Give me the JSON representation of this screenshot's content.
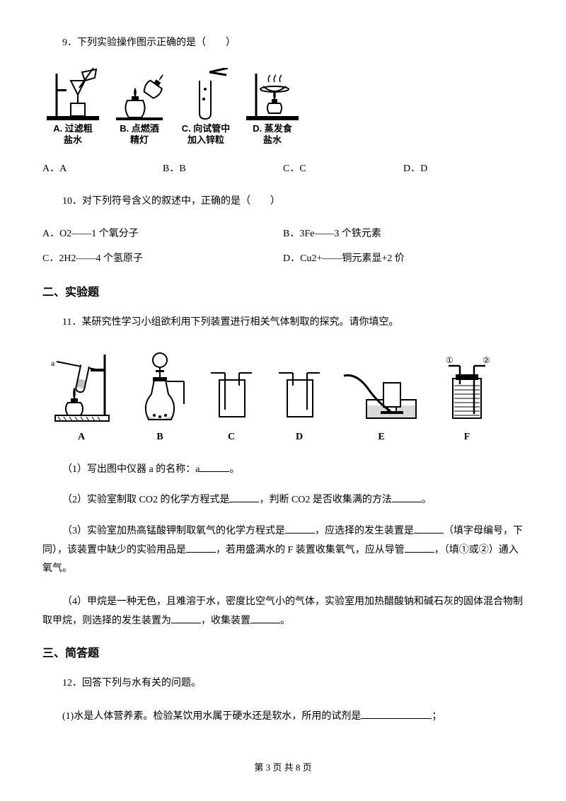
{
  "q9": {
    "stem": "9．下列实验操作图示正确的是（　　）",
    "figs": {
      "a_caption": "A. 过滤粗\n盐水",
      "b_caption": "B. 点燃酒\n精灯",
      "c_caption": "C. 向试管中\n加入锌粒",
      "d_caption": "D. 蒸发食\n盐水"
    },
    "options": {
      "a": "A．A",
      "b": "B．B",
      "c": "C．C",
      "d": "D．D"
    }
  },
  "q10": {
    "stem": "10．对下列符号含义的叙述中，正确的是（　　）",
    "options": {
      "a": "A．O2——1 个氧分子",
      "b": "B．3Fe——3 个铁元素",
      "c": "C．2H2——4 个氢原子",
      "d": "D．Cu2+——铜元素显+2 价"
    }
  },
  "section2": "二、实验题",
  "q11": {
    "stem": "11．某研究性学习小组欲利用下列装置进行相关气体制取的探究。请你填空。",
    "labels": {
      "A": "A",
      "B": "B",
      "C": "C",
      "D": "D",
      "E": "E",
      "F": "F"
    },
    "sub1_pre": "（1）写出图中仪器 a 的名称：a",
    "sub1_post": "。",
    "sub2_pre": "（2）实验室制取 CO2 的化学方程式是",
    "sub2_mid": "，判断 CO2 是否收集满的方法",
    "sub2_post": "。",
    "sub3_pre": "（3）实验室加热高锰酸钾制取氧气的化学方程式是",
    "sub3_mid1": "，应选择的发生装置是",
    "sub3_mid2": "（填字母编号，下同），该装置中缺少的实验用品是",
    "sub3_mid3": "，若用盛满水的 F 装置收集氧气，应从导管",
    "sub3_post": "，（填①或②）通入氧气。",
    "sub4_pre": "（4）甲烷是一种无色，且难溶于水，密度比空气小的气体，实验室用加热醋酸钠和碱石灰的固体混合物制取甲烷，则选择的发生装置为",
    "sub4_mid": "，收集装置",
    "sub4_post": "。"
  },
  "section3": "三、简答题",
  "q12": {
    "stem": "12．回答下列与水有关的问题。",
    "sub1_pre": "(1)水是人体营养素。检验某饮用水属于硬水还是软水，所用的试剂是",
    "sub1_post": "；"
  },
  "footer": "第 3 页 共 8 页",
  "colors": {
    "text": "#000000",
    "bg": "#ffffff"
  }
}
